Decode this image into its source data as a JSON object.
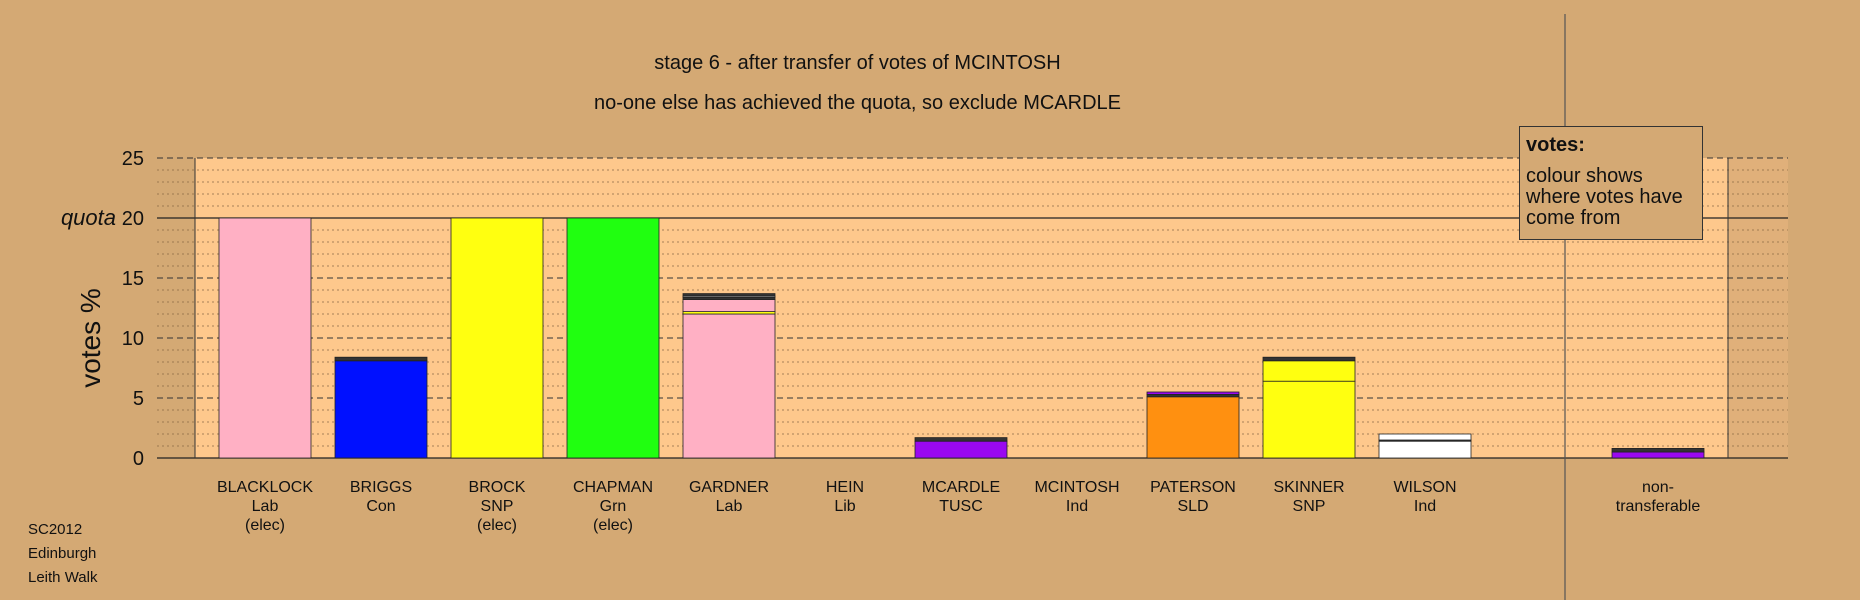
{
  "title": "stage 6 - after transfer of votes of MCINTOSH",
  "subtitle": "no-one else has achieved the quota, so exclude MCARDLE",
  "legend": {
    "heading": "votes:",
    "text": "colour shows where votes have come from"
  },
  "footnote": [
    "SC2012",
    "Edinburgh",
    "Leith Walk"
  ],
  "colors": {
    "background": "#d4a974",
    "plot_area": "#fec88c",
    "lab": "#ffb0c4",
    "con": "#0010ff",
    "snp": "#ffff10",
    "grn": "#20ff10",
    "tusc": "#9a08f0",
    "sld": "#ff9010",
    "ind": "#ffffff",
    "dark": "#333333"
  },
  "chart_data": {
    "type": "bar",
    "stacked": true,
    "ylabel": "votes %",
    "ylim": [
      0,
      25
    ],
    "yticks": [
      0,
      5,
      10,
      15,
      20,
      25
    ],
    "quota": 20,
    "quota_label": "quota",
    "grid": true,
    "candidates": [
      {
        "name": "BLACKLOCK",
        "party": "Lab",
        "status": "(elec)",
        "segments": [
          {
            "color": "lab",
            "value": 20
          }
        ]
      },
      {
        "name": "BRIGGS",
        "party": "Con",
        "status": "",
        "segments": [
          {
            "color": "con",
            "value": 8.1
          },
          {
            "color": "dark",
            "value": 0.3
          }
        ]
      },
      {
        "name": "BROCK",
        "party": "SNP",
        "status": "(elec)",
        "segments": [
          {
            "color": "snp",
            "value": 20
          }
        ]
      },
      {
        "name": "CHAPMAN",
        "party": "Grn",
        "status": "(elec)",
        "segments": [
          {
            "color": "grn",
            "value": 20
          }
        ]
      },
      {
        "name": "GARDNER",
        "party": "Lab",
        "status": "",
        "segments": [
          {
            "color": "lab",
            "value": 12.0
          },
          {
            "color": "snp",
            "value": 0.2
          },
          {
            "color": "lab",
            "value": 1.0
          },
          {
            "color": "dark",
            "value": 0.2
          },
          {
            "color": "ind",
            "value": 0.1
          },
          {
            "color": "dark",
            "value": 0.2
          }
        ]
      },
      {
        "name": "HEIN",
        "party": "Lib",
        "status": "",
        "segments": []
      },
      {
        "name": "MCARDLE",
        "party": "TUSC",
        "status": "",
        "segments": [
          {
            "color": "tusc",
            "value": 1.4
          },
          {
            "color": "dark",
            "value": 0.3
          }
        ]
      },
      {
        "name": "MCINTOSH",
        "party": "Ind",
        "status": "",
        "segments": []
      },
      {
        "name": "PATERSON",
        "party": "SLD",
        "status": "",
        "segments": [
          {
            "color": "sld",
            "value": 5.1
          },
          {
            "color": "dark",
            "value": 0.2
          },
          {
            "color": "tusc",
            "value": 0.2
          }
        ]
      },
      {
        "name": "SKINNER",
        "party": "SNP",
        "status": "",
        "segments": [
          {
            "color": "snp",
            "value": 6.4
          },
          {
            "color": "snp",
            "value": 1.7
          },
          {
            "color": "dark",
            "value": 0.3
          }
        ]
      },
      {
        "name": "WILSON",
        "party": "Ind",
        "status": "",
        "segments": [
          {
            "color": "ind",
            "value": 1.4
          },
          {
            "color": "dark",
            "value": 0.1
          },
          {
            "color": "ind",
            "value": 0.5
          }
        ]
      }
    ],
    "nontransferable": {
      "label_line1": "non-",
      "label_line2": "transferable",
      "segments": [
        {
          "color": "tusc",
          "value": 0.5
        },
        {
          "color": "dark",
          "value": 0.3
        }
      ]
    }
  }
}
